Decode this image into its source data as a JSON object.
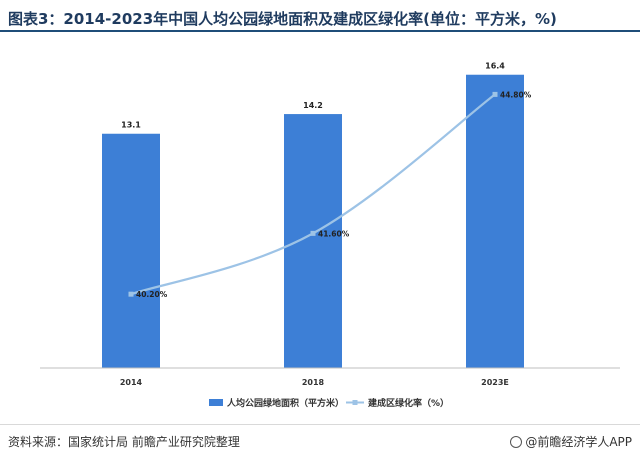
{
  "title": "图表3：2014-2023年中国人均公园绿地面积及建成区绿化率(单位：平方米，%)",
  "source": "资料来源：国家统计局 前瞻产业研究院整理",
  "brand": "@前瞻经济学人APP",
  "colors": {
    "bar": "#3d7fd6",
    "line": "#9dc3e6",
    "title_line": "#1f4e79"
  },
  "chart_data": {
    "type": "bar",
    "categories": [
      "2014",
      "2018",
      "2023E"
    ],
    "series": [
      {
        "name": "人均公园绿地面积（平方米）",
        "type": "bar",
        "values": [
          13.1,
          14.2,
          16.4
        ],
        "labels": [
          "13.1",
          "14.2",
          "16.4"
        ]
      },
      {
        "name": "建成区绿化率（%）",
        "type": "line",
        "values": [
          40.2,
          41.6,
          44.8
        ],
        "labels": [
          "40.20%",
          "41.60%",
          "44.80%"
        ]
      }
    ],
    "y_bar_range": [
      0,
      17
    ],
    "y_line_range": [
      38.5,
      45.5
    ],
    "grid": false,
    "legend_position": "bottom"
  }
}
